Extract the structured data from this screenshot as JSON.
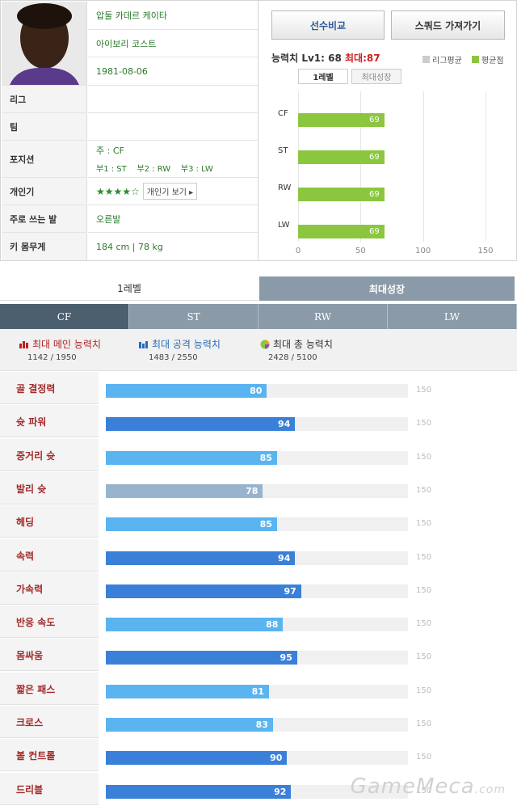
{
  "player": {
    "name": "압둘 카데르 케이타",
    "country": "아이보리 코스트",
    "birth": "1981-08-06",
    "league_label": "리그",
    "team_label": "팀",
    "position_label": "포지션",
    "position_main": "주 : CF",
    "position_sub": "부1 : ST    부2 : RW    부3 : LW",
    "popularity_label": "개인기",
    "popularity_stars": "★★★★☆",
    "popularity_btn": "개인기 보기 ▸",
    "foot_label": "주로 쓰는 발",
    "foot": "오른발",
    "body_label": "키 몸무게",
    "body": "184 cm | 78 kg"
  },
  "buttons": {
    "compare": "선수비교",
    "squad": "스쿼드 가져가기"
  },
  "ability": {
    "label": "능력치",
    "lv": "Lv1: 68",
    "max": "최대:87"
  },
  "legend": {
    "league": "리그평균",
    "avg": "평균점",
    "league_color": "#cccccc",
    "avg_color": "#8cc63f"
  },
  "mini_tabs": [
    "1레벨",
    "최대성장"
  ],
  "mini_chart": {
    "positions": [
      "CF",
      "ST",
      "RW",
      "LW"
    ],
    "values": [
      69,
      69,
      69,
      69
    ],
    "ticks": [
      "0",
      "50",
      "100",
      "150"
    ],
    "max": 150
  },
  "level_tabs": [
    "1레벨",
    "최대성장"
  ],
  "pos_tabs": [
    "CF",
    "ST",
    "RW",
    "LW"
  ],
  "summary": [
    {
      "title": "최대 메인 능력치",
      "value": "1142 / 1950",
      "icon": "bar-chart-red-icon"
    },
    {
      "title": "최대 공격 능력치",
      "value": "1483 / 2550",
      "icon": "bar-chart-blue-icon"
    },
    {
      "title": "최대 총 능력치",
      "value": "2428 / 5100",
      "icon": "pie-chart-icon"
    }
  ],
  "stats": [
    {
      "name": "골 결정력",
      "value": 80,
      "color": "#5ab4f0"
    },
    {
      "name": "슛 파워",
      "value": 94,
      "color": "#3a80d8"
    },
    {
      "name": "중거리 슛",
      "value": 85,
      "color": "#5ab4f0"
    },
    {
      "name": "발리 슛",
      "value": 78,
      "color": "#98b4cc"
    },
    {
      "name": "헤딩",
      "value": 85,
      "color": "#5ab4f0"
    },
    {
      "name": "속력",
      "value": 94,
      "color": "#3a80d8"
    },
    {
      "name": "가속력",
      "value": 97,
      "color": "#3a80d8"
    },
    {
      "name": "반응 속도",
      "value": 88,
      "color": "#5ab4f0"
    },
    {
      "name": "몸싸움",
      "value": 95,
      "color": "#3a80d8"
    },
    {
      "name": "짧은 패스",
      "value": 81,
      "color": "#5ab4f0"
    },
    {
      "name": "크로스",
      "value": 83,
      "color": "#5ab4f0"
    },
    {
      "name": "볼 컨트롤",
      "value": 90,
      "color": "#3a80d8"
    },
    {
      "name": "드리블",
      "value": 92,
      "color": "#3a80d8"
    }
  ],
  "stat_max": "150",
  "watermark": "GameMeca",
  "watermark_suffix": ".com"
}
